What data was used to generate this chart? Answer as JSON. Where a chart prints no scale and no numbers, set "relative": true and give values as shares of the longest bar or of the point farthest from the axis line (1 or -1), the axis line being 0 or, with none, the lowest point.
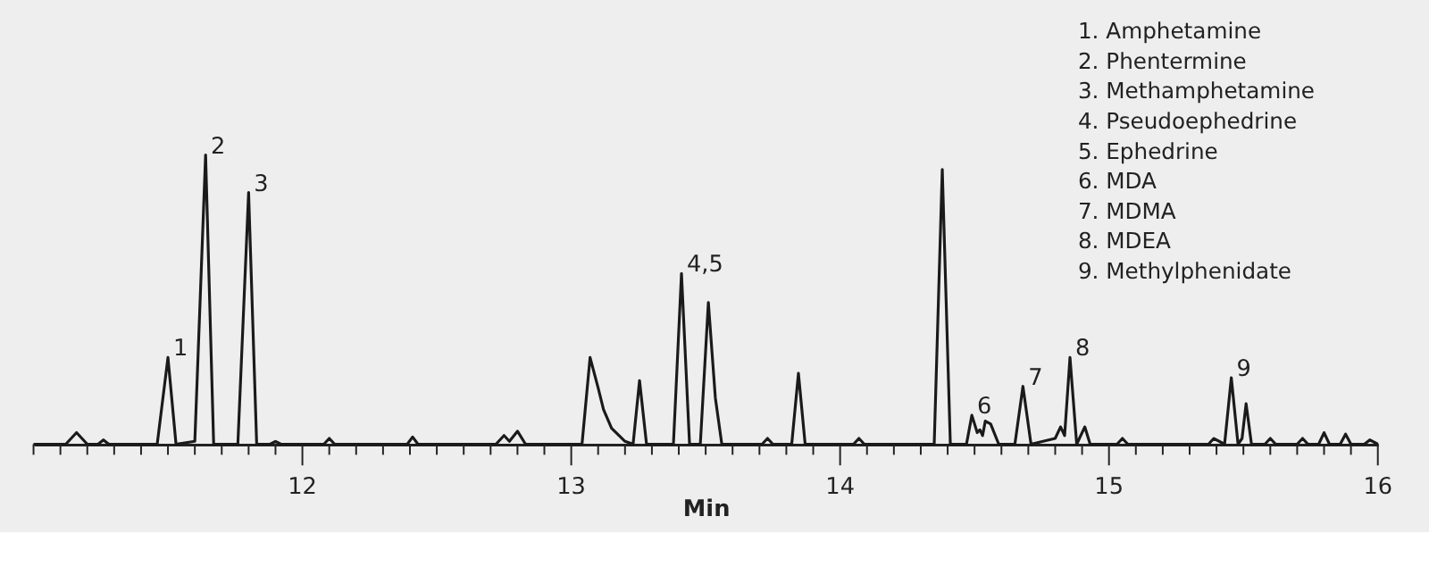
{
  "chart_data": {
    "type": "line",
    "relative": true,
    "xlabel": "Min",
    "color": "#1a1a1a",
    "x": [
      11.0,
      11.12,
      11.16,
      11.2,
      11.24,
      11.26,
      11.28,
      11.46,
      11.5,
      11.53,
      11.6,
      11.64,
      11.67,
      11.76,
      11.8,
      11.83,
      11.88,
      11.9,
      11.92,
      12.08,
      12.1,
      12.12,
      12.39,
      12.41,
      12.43,
      12.72,
      12.75,
      12.77,
      12.8,
      12.83,
      13.04,
      13.07,
      13.1,
      13.12,
      13.15,
      13.2,
      13.23,
      13.254,
      13.28,
      13.38,
      13.41,
      13.44,
      13.48,
      13.51,
      13.536,
      13.56,
      13.71,
      13.73,
      13.75,
      13.82,
      13.845,
      13.87,
      14.05,
      14.07,
      14.09,
      14.35,
      14.38,
      14.41,
      14.47,
      14.49,
      14.51,
      14.52,
      14.53,
      14.54,
      14.56,
      14.59,
      14.65,
      14.68,
      14.71,
      14.8,
      14.82,
      14.835,
      14.855,
      14.88,
      14.91,
      14.93,
      15.03,
      15.05,
      15.07,
      15.37,
      15.39,
      15.43,
      15.455,
      15.48,
      15.495,
      15.51,
      15.53,
      15.58,
      15.6,
      15.62,
      15.7,
      15.72,
      15.74,
      15.78,
      15.8,
      15.82,
      15.86,
      15.88,
      15.9,
      15.95,
      15.97,
      16.0
    ],
    "values": [
      0,
      0,
      0.04,
      0,
      0,
      0.015,
      0,
      0,
      0.3,
      0,
      0.01,
      1.0,
      0,
      0,
      0.87,
      0,
      0,
      0.01,
      0,
      0,
      0.02,
      0,
      0,
      0.025,
      0,
      0,
      0.03,
      0.01,
      0.045,
      0,
      0,
      0.3,
      0.195,
      0.12,
      0.055,
      0.01,
      0,
      0.22,
      0,
      0,
      0.59,
      0,
      0,
      0.49,
      0.16,
      0,
      0,
      0.02,
      0,
      0,
      0.245,
      0,
      0,
      0.02,
      0,
      0,
      0.95,
      0,
      0,
      0.1,
      0.04,
      0.05,
      0.03,
      0.08,
      0.07,
      0,
      0,
      0.2,
      0,
      0.02,
      0.06,
      0.03,
      0.3,
      0,
      0.06,
      0,
      0,
      0.02,
      0,
      0,
      0.02,
      0,
      0.23,
      0,
      0.02,
      0.14,
      0,
      0,
      0.02,
      0,
      0,
      0.02,
      0,
      0,
      0.04,
      0,
      0,
      0.035,
      0,
      0,
      0.015,
      0
    ],
    "xlim": [
      11,
      16
    ],
    "xticks": [
      {
        "value": 11,
        "label": null
      },
      {
        "value": 11.1,
        "label": null
      },
      {
        "value": 11.2,
        "label": null
      },
      {
        "value": 11.3,
        "label": null
      },
      {
        "value": 11.4,
        "label": null
      },
      {
        "value": 11.5,
        "label": null
      },
      {
        "value": 11.6,
        "label": null
      },
      {
        "value": 11.7,
        "label": null
      },
      {
        "value": 11.8,
        "label": null
      },
      {
        "value": 11.9,
        "label": null
      },
      12,
      {
        "value": 12.1,
        "label": null
      },
      {
        "value": 12.2,
        "label": null
      },
      {
        "value": 12.3,
        "label": null
      },
      {
        "value": 12.4,
        "label": null
      },
      {
        "value": 12.5,
        "label": null
      },
      {
        "value": 12.6,
        "label": null
      },
      {
        "value": 12.7,
        "label": null
      },
      {
        "value": 12.8,
        "label": null
      },
      {
        "value": 12.9,
        "label": null
      },
      13,
      {
        "value": 13.1,
        "label": null
      },
      {
        "value": 13.2,
        "label": null
      },
      {
        "value": 13.3,
        "label": null
      },
      {
        "value": 13.4,
        "label": null
      },
      {
        "value": 13.5,
        "label": null
      },
      {
        "value": 13.6,
        "label": null
      },
      {
        "value": 13.7,
        "label": null
      },
      {
        "value": 13.8,
        "label": null
      },
      {
        "value": 13.9,
        "label": null
      },
      14,
      {
        "value": 14.1,
        "label": null
      },
      {
        "value": 14.2,
        "label": null
      },
      {
        "value": 14.3,
        "label": null
      },
      {
        "value": 14.4,
        "label": null
      },
      {
        "value": 14.5,
        "label": null
      },
      {
        "value": 14.6,
        "label": null
      },
      {
        "value": 14.7,
        "label": null
      },
      {
        "value": 14.8,
        "label": null
      },
      {
        "value": 14.9,
        "label": null
      },
      15,
      {
        "value": 15.1,
        "label": null
      },
      {
        "value": 15.2,
        "label": null
      },
      {
        "value": 15.3,
        "label": null
      },
      {
        "value": 15.4,
        "label": null
      },
      {
        "value": 15.5,
        "label": null
      },
      {
        "value": 15.6,
        "label": null
      },
      {
        "value": 15.7,
        "label": null
      },
      {
        "value": 15.8,
        "label": null
      },
      {
        "value": 15.9,
        "label": null
      },
      16
    ],
    "grid": false,
    "marker": "none",
    "line_style": "solid",
    "annotations": [
      {
        "text": "1",
        "x": 11.5,
        "y": 0.3
      },
      {
        "text": "2",
        "x": 11.64,
        "y": 1.0
      },
      {
        "text": "3",
        "x": 11.8,
        "y": 0.87
      },
      {
        "text": "4,5",
        "x": 13.41,
        "y": 0.59
      },
      {
        "text": "6",
        "x": 14.49,
        "y": 0.1
      },
      {
        "text": "7",
        "x": 14.68,
        "y": 0.2
      },
      {
        "text": "8",
        "x": 14.855,
        "y": 0.3
      },
      {
        "text": "9",
        "x": 15.455,
        "y": 0.23
      },
      "1. Amphetamine",
      "2. Phentermine",
      "3. Methamphetamine",
      "4. Pseudoephedrine",
      "5. Ephedrine",
      "6. MDA",
      "7. MDMA",
      "8. MDEA",
      "9. Methylphenidate"
    ]
  }
}
